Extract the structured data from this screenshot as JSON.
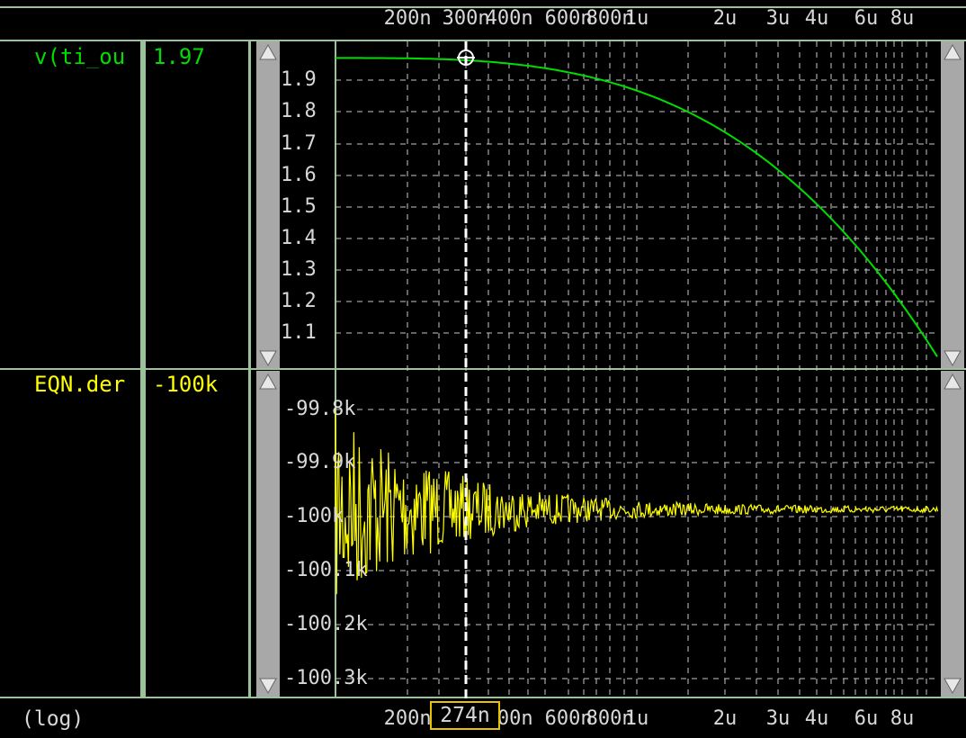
{
  "top_axis": {
    "ticks": [
      "200n",
      "300n",
      "400n",
      "600n",
      "800n",
      "1u",
      "2u",
      "3u",
      "4u",
      "6u",
      "8u"
    ]
  },
  "bottom_axis": {
    "mode": "(log)",
    "ticks": [
      "200n",
      "300n",
      "400n",
      "600n",
      "800n",
      "1u",
      "2u",
      "3u",
      "4u",
      "6u",
      "8u"
    ],
    "cursor_value": "274n"
  },
  "pane1": {
    "signal_name": "v(ti_ou",
    "cursor_readout": "1.97",
    "color": "#00dd00",
    "yticks": [
      "1.9",
      "1.8",
      "1.7",
      "1.6",
      "1.5",
      "1.4",
      "1.3",
      "1.2",
      "1.1"
    ]
  },
  "pane2": {
    "signal_name": "EQN.der",
    "cursor_readout": "-100k",
    "color": "#ffff00",
    "yticks": [
      "-99.8k",
      "-99.9k",
      "-100k",
      "-100.1k",
      "-100.2k",
      "-100.3k"
    ]
  },
  "colors": {
    "grid": "#9cc29c",
    "background": "#000000",
    "axis_text": "#d8d8d8"
  }
}
